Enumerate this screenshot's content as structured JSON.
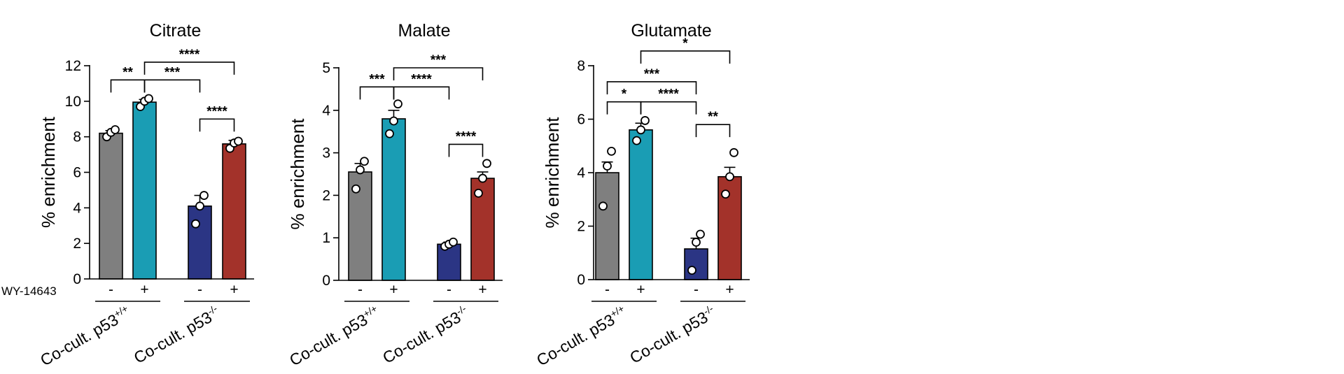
{
  "chart_data": [
    {
      "type": "bar",
      "title": "Citrate",
      "ylabel": "% enrichment",
      "ylim": [
        0,
        12
      ],
      "yticks": [
        "0",
        "2",
        "4",
        "6",
        "8",
        "10",
        "12"
      ],
      "categories": [
        "-",
        "+",
        "-",
        "+"
      ],
      "groups": [
        {
          "label": "Co-cult. p53",
          "sup": "+/+"
        },
        {
          "label": "Co-cult. p53",
          "sup": "-/-"
        }
      ],
      "treatment_label": "WY-14643",
      "colors": [
        "#7f7f7f",
        "#1a9db4",
        "#2b3584",
        "#a3322a"
      ],
      "values": [
        8.2,
        9.95,
        4.1,
        7.6
      ],
      "errors": [
        0.15,
        0.15,
        0.6,
        0.2
      ],
      "points": [
        [
          8.0,
          8.25,
          8.4
        ],
        [
          9.7,
          10.0,
          10.15
        ],
        [
          3.1,
          4.1,
          4.7
        ],
        [
          7.35,
          7.65,
          7.75
        ]
      ],
      "significance": [
        {
          "from": 0,
          "to": 1,
          "y": 11.2,
          "label": "**"
        },
        {
          "from": 1,
          "to": 2,
          "y": 11.2,
          "label": "***"
        },
        {
          "from": 1,
          "to": 3,
          "y": 12.2,
          "label": "****"
        },
        {
          "from": 2,
          "to": 3,
          "y": 9.0,
          "label": "****"
        }
      ]
    },
    {
      "type": "bar",
      "title": "Malate",
      "ylabel": "% enrichment",
      "ylim": [
        0,
        5
      ],
      "yticks": [
        "0",
        "1",
        "2",
        "3",
        "4",
        "5"
      ],
      "categories": [
        "-",
        "+",
        "-",
        "+"
      ],
      "groups": [
        {
          "label": "Co-cult. p53",
          "sup": "+/+"
        },
        {
          "label": "Co-cult. p53",
          "sup": "-/-"
        }
      ],
      "colors": [
        "#7f7f7f",
        "#1a9db4",
        "#2b3584",
        "#a3322a"
      ],
      "values": [
        2.55,
        3.8,
        0.85,
        2.4
      ],
      "errors": [
        0.2,
        0.2,
        0.05,
        0.15
      ],
      "points": [
        [
          2.15,
          2.6,
          2.8
        ],
        [
          3.45,
          3.75,
          4.15
        ],
        [
          0.8,
          0.85,
          0.9
        ],
        [
          2.05,
          2.4,
          2.75
        ]
      ],
      "significance": [
        {
          "from": 0,
          "to": 1,
          "y": 4.55,
          "label": "***"
        },
        {
          "from": 1,
          "to": 2,
          "y": 4.55,
          "label": "****"
        },
        {
          "from": 1,
          "to": 3,
          "y": 5.0,
          "label": "***"
        },
        {
          "from": 2,
          "to": 3,
          "y": 3.2,
          "label": "****"
        }
      ]
    },
    {
      "type": "bar",
      "title": "Glutamate",
      "ylabel": "% enrichment",
      "ylim": [
        0,
        8
      ],
      "yticks": [
        "0",
        "2",
        "4",
        "6",
        "8"
      ],
      "categories": [
        "-",
        "+",
        "-",
        "+"
      ],
      "groups": [
        {
          "label": "Co-cult. p53",
          "sup": "+/+"
        },
        {
          "label": "Co-cult. p53",
          "sup": "-/-"
        }
      ],
      "colors": [
        "#7f7f7f",
        "#1a9db4",
        "#2b3584",
        "#a3322a"
      ],
      "values": [
        4.0,
        5.6,
        1.15,
        3.85
      ],
      "errors": [
        0.4,
        0.25,
        0.4,
        0.35
      ],
      "points": [
        [
          2.75,
          4.25,
          4.8
        ],
        [
          5.2,
          5.6,
          5.95
        ],
        [
          0.35,
          1.4,
          1.7
        ],
        [
          3.2,
          3.85,
          4.75
        ]
      ],
      "significance": [
        {
          "from": 0,
          "to": 1,
          "y": 6.65,
          "label": "*"
        },
        {
          "from": 1,
          "to": 2,
          "y": 6.65,
          "label": "****"
        },
        {
          "from": 0,
          "to": 2,
          "y": 7.4,
          "label": "***"
        },
        {
          "from": 1,
          "to": 3,
          "y": 8.55,
          "label": "*"
        },
        {
          "from": 2,
          "to": 3,
          "y": 5.8,
          "label": "**"
        }
      ]
    }
  ]
}
